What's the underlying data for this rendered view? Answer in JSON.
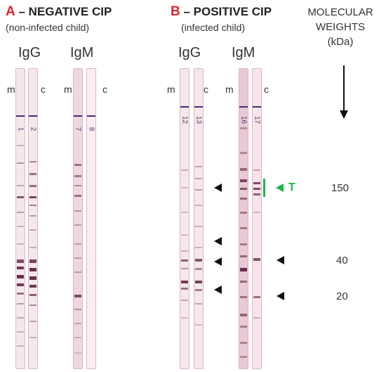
{
  "panel_a": {
    "letter": "A",
    "title": " – NEGATIVE CIP",
    "subtitle": "(non-infected child)",
    "igg": "IgG",
    "igm": "IgM",
    "m1": "m",
    "c1": "c",
    "m2": "m",
    "c2": "c",
    "strip_numbers": [
      "1",
      "2",
      "7",
      "8"
    ]
  },
  "panel_b": {
    "letter": "B",
    "title": " – POSITIVE CIP",
    "subtitle": "(infected child)",
    "igg": "IgG",
    "igm": "IgM",
    "m1": "m",
    "c1": "c",
    "m2": "m",
    "c2": "c",
    "strip_numbers": [
      "12",
      "13",
      "16",
      "17"
    ]
  },
  "molecular_weights": {
    "title_lines": [
      "MOLECULAR",
      "WEIGHTS",
      "(kDa)"
    ],
    "values": [
      "150",
      "40",
      "20"
    ]
  },
  "t_marker": "T",
  "colors": {
    "panel_letter": "#d8262b",
    "t_marker": "#19b84a",
    "strip_base": "#f6e7ec",
    "band": "#5e2746",
    "cut_line": "#3a2f6e"
  }
}
